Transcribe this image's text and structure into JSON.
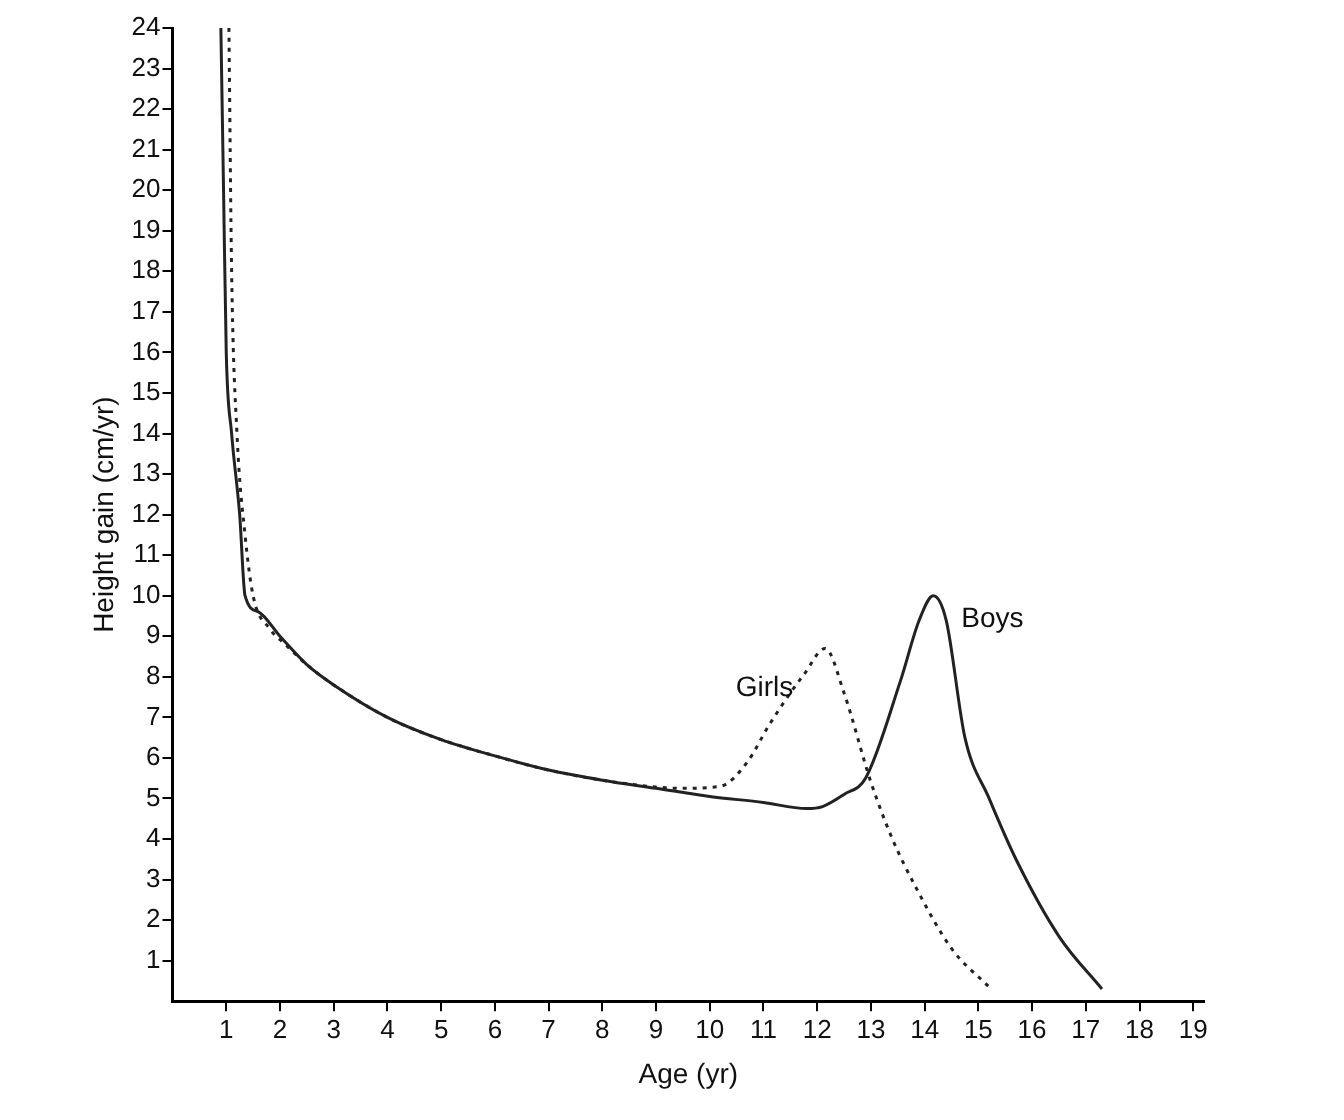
{
  "chart_data": {
    "type": "line",
    "xlabel": "Age (yr)",
    "ylabel": "Height gain (cm/yr)",
    "xlim": [
      0,
      19.2
    ],
    "ylim": [
      0,
      24
    ],
    "xticks": [
      1,
      2,
      3,
      4,
      5,
      6,
      7,
      8,
      9,
      10,
      11,
      12,
      13,
      14,
      15,
      16,
      17,
      18,
      19
    ],
    "yticks": [
      1,
      2,
      3,
      4,
      5,
      6,
      7,
      8,
      9,
      10,
      11,
      12,
      13,
      14,
      15,
      16,
      17,
      18,
      19,
      20,
      21,
      22,
      23,
      24
    ],
    "grid": false,
    "legend": false,
    "marker": "none",
    "series": [
      {
        "name": "Girls",
        "color": "#222222",
        "line_style": "dotted",
        "x": [
          1.05,
          1.1,
          1.2,
          1.35,
          1.5,
          1.8,
          2.1,
          2.5,
          3,
          4,
          5,
          6,
          7,
          8,
          9,
          9.5,
          10.2,
          10.7,
          11.1,
          11.5,
          11.75,
          12.15,
          12.5,
          13,
          13.4,
          13.8,
          14.5,
          15.2
        ],
        "values": [
          24,
          18,
          14,
          11.5,
          10,
          9.2,
          8.8,
          8.3,
          7.8,
          7,
          6.45,
          6.05,
          5.7,
          5.45,
          5.28,
          5.25,
          5.3,
          5.9,
          6.8,
          7.6,
          8.05,
          8.7,
          7.6,
          5.4,
          4,
          2.9,
          1.3,
          0.35
        ]
      },
      {
        "name": "Boys",
        "color": "#222222",
        "line_style": "solid",
        "x": [
          0.9,
          0.95,
          1,
          1.1,
          1.25,
          1.35,
          1.6,
          2,
          2.5,
          3,
          4,
          5,
          6,
          7,
          8,
          9,
          10,
          11,
          11.8,
          12.1,
          12.5,
          12.9,
          13.55,
          13.9,
          14.16,
          14.4,
          14.75,
          15.2,
          15.7,
          16.5,
          17.3
        ],
        "values": [
          24,
          20,
          16,
          14,
          12,
          10,
          9.6,
          9,
          8.3,
          7.8,
          7,
          6.45,
          6.05,
          5.7,
          5.45,
          5.25,
          5.05,
          4.9,
          4.75,
          4.8,
          5.1,
          5.5,
          7.9,
          9.4,
          10,
          9.4,
          6.5,
          5,
          3.5,
          1.6,
          0.3
        ]
      }
    ]
  }
}
